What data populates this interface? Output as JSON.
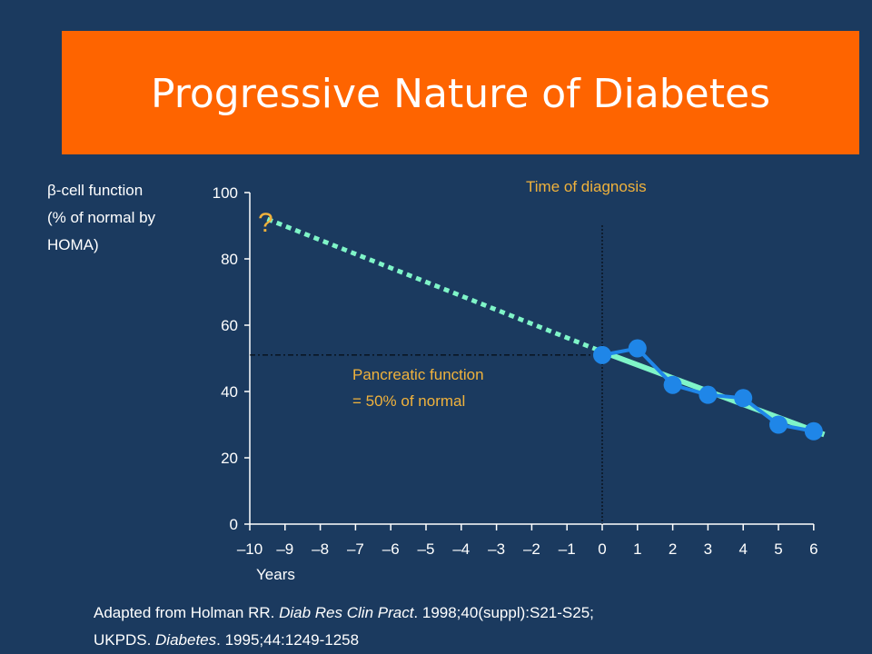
{
  "title": "Progressive Nature of Diabetes",
  "colors": {
    "background": "#1b3a5f",
    "banner": "#fe6400",
    "trend": "#7ff5c8",
    "data": "#1f86e8",
    "annotation": "#f0b23c"
  },
  "chart_data": {
    "type": "line",
    "xlabel": "Years",
    "ylabel_lines": [
      "β-cell function",
      "(% of normal by",
      "HOMA)"
    ],
    "xlim": [
      -10,
      6
    ],
    "ylim": [
      0,
      100
    ],
    "x_ticks": [
      -10,
      -9,
      -8,
      -7,
      -6,
      -5,
      -4,
      -3,
      -2,
      -1,
      0,
      1,
      2,
      3,
      4,
      5,
      6
    ],
    "x_tick_labels": [
      "–10",
      "–9",
      "–8",
      "–7",
      "–6",
      "–5",
      "–4",
      "–3",
      "–2",
      "–1",
      "0",
      "1",
      "2",
      "3",
      "4",
      "5",
      "6"
    ],
    "y_ticks": [
      0,
      20,
      40,
      60,
      80,
      100
    ],
    "y_tick_labels": [
      "0",
      "20",
      "40",
      "60",
      "80",
      "100"
    ],
    "grid": false,
    "series": [
      {
        "style": "dotted-extrapolation",
        "x": [
          -9.5,
          0
        ],
        "y": [
          92,
          52
        ]
      },
      {
        "style": "fitted-trend",
        "x": [
          0,
          6.3
        ],
        "y": [
          52,
          27
        ]
      },
      {
        "style": "observed-points",
        "x": [
          0,
          1,
          2,
          3,
          4,
          5,
          6
        ],
        "y": [
          51,
          53,
          42,
          39,
          38,
          30,
          28
        ]
      }
    ],
    "reference_lines": {
      "vertical_x": 0,
      "horizontal_y": 51
    },
    "annotations": {
      "unknown_marker": "?",
      "diagnosis": "Time of diagnosis",
      "pancreatic_line1": "Pancreatic function",
      "pancreatic_line2": "= 50% of normal"
    }
  },
  "citation": {
    "line1_pre": "Adapted from Holman RR. ",
    "line1_journal": "Diab Res Clin Pract",
    "line1_post": ". 1998;40(suppl):S21-S25;",
    "line2_pre": "UKPDS. ",
    "line2_journal": "Diabetes",
    "line2_post": ". 1995;44:1249-1258"
  }
}
